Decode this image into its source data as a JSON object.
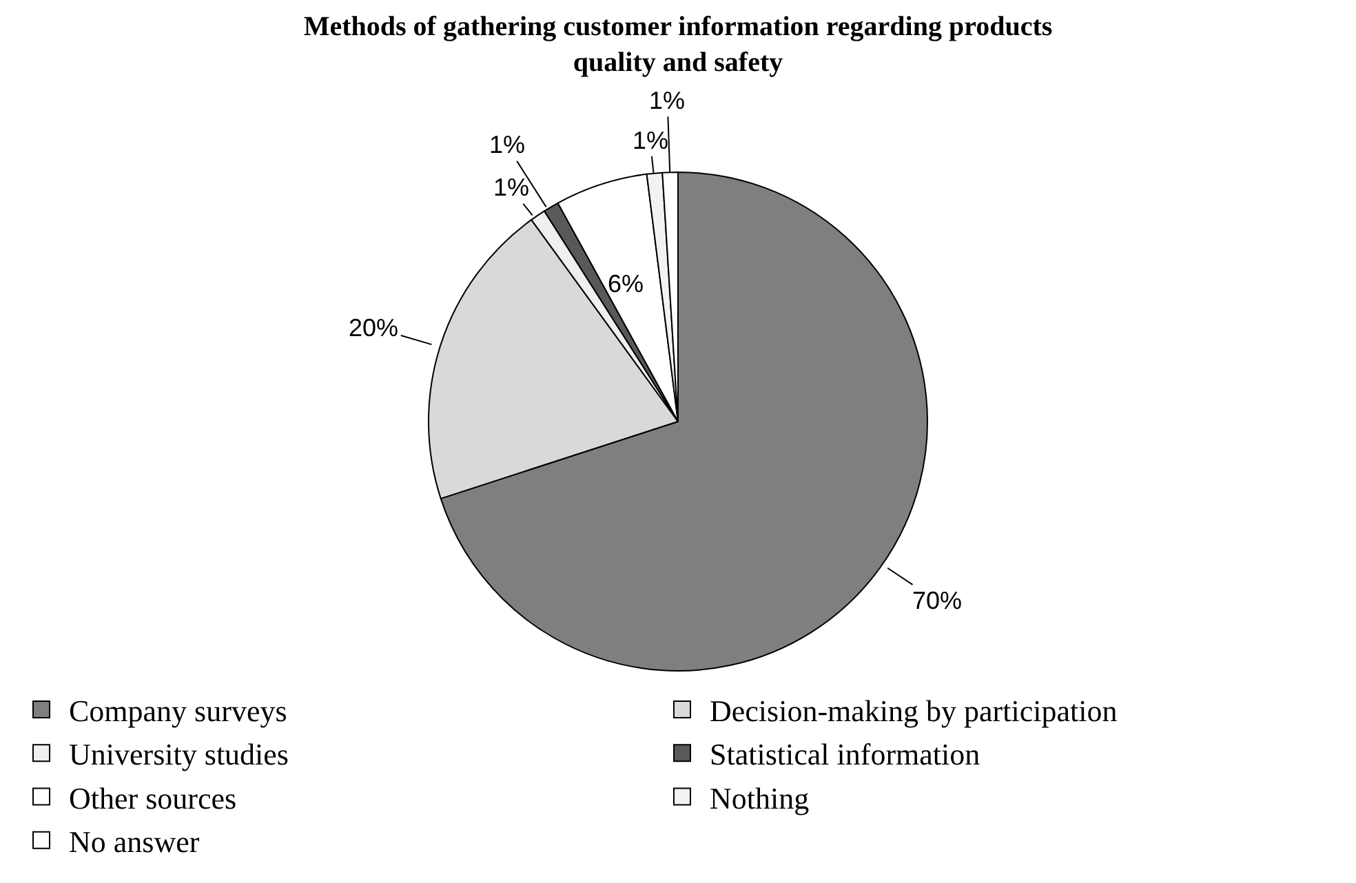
{
  "chart_data": {
    "type": "pie",
    "title": "Methods of gathering customer information regarding products quality and safety",
    "categories": [
      "Company surveys",
      "Decision-making by participation",
      "University studies",
      "Statistical information",
      "Other sources",
      "Nothing",
      "No answer"
    ],
    "values": [
      70,
      20,
      1,
      1,
      6,
      1,
      1
    ],
    "value_labels": [
      "70%",
      "20%",
      "1%",
      "1%",
      "6%",
      "1%",
      "1%"
    ],
    "colors": [
      "#7f7f7f",
      "#d9d9d9",
      "#efefef",
      "#595959",
      "#ffffff",
      "#f2f2f2",
      "#ffffff"
    ],
    "legend": "bottom"
  }
}
